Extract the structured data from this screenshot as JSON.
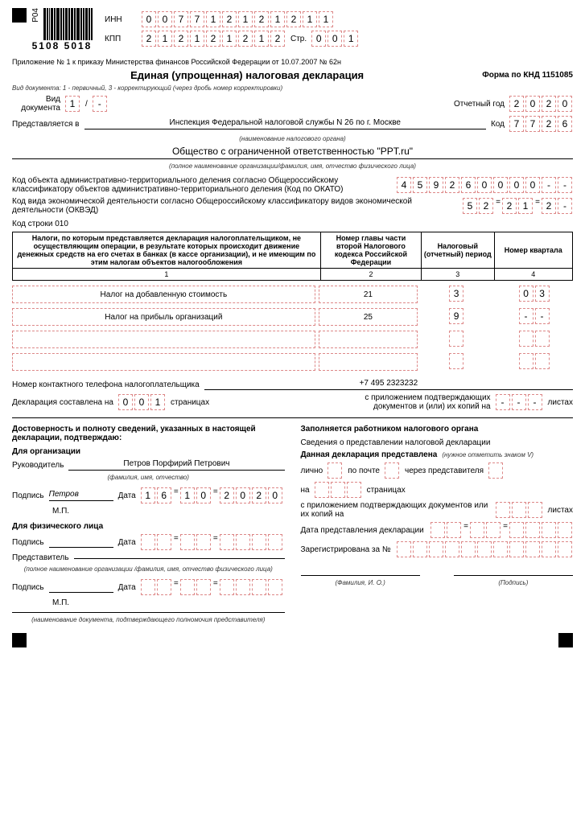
{
  "header": {
    "inn_label": "ИНН",
    "inn": [
      "0",
      "0",
      "7",
      "7",
      "1",
      "2",
      "1",
      "2",
      "1",
      "2",
      "1",
      "1"
    ],
    "kpp_label": "КПП",
    "kpp": [
      "2",
      "1",
      "2",
      "1",
      "2",
      "1",
      "2",
      "1",
      "2"
    ],
    "page_label": "Стр.",
    "page": [
      "0",
      "0",
      "1"
    ],
    "p04": "Р04",
    "barcode_num": "5108 5018"
  },
  "annex": "Приложение № 1 к приказу Министерства финансов Российской Федерации от 10.07.2007 № 62н",
  "title": "Единая (упрощенная) налоговая декларация",
  "form_code": "Форма по КНД 1151085",
  "doc_type_hint": "Вид документа: 1 - первичный, 3 - корректирующий (через дробь номер корректировки)",
  "doc_type_label": "Вид документа",
  "doc_type": [
    "1"
  ],
  "doc_slash": "/",
  "doc_corr": [
    "-"
  ],
  "report_year_label": "Отчетный год",
  "report_year": [
    "2",
    "0",
    "2",
    "0"
  ],
  "submitted_label": "Представляется в",
  "submitted_to": "Инспекция Федеральной налоговой службы N 26 по г. Москве",
  "submitted_hint": "(наименование налогового органа)",
  "code_label": "Код",
  "code": [
    "7",
    "7",
    "2",
    "6"
  ],
  "org_name": "Общество с ограниченной ответственностью \"PPT.ru\"",
  "org_hint": "(полное наименование организации/фамилия, имя, отчество физического лица)",
  "okato_label": "Код объекта административно-территориального деления согласно Общероссийскому классификатору объектов административно-территориального деления (Код по ОКАТО)",
  "okato": [
    "4",
    "5",
    "9",
    "2",
    "6",
    "0",
    "0",
    "0",
    "0",
    "-",
    "-"
  ],
  "okved_label": "Код вида экономической деятельности согласно Общероссийскому классификатору видов экономической деятельности (ОКВЭД)",
  "okved1": [
    "5",
    "2"
  ],
  "okved2": [
    "2",
    "1"
  ],
  "okved3": [
    "2",
    "-"
  ],
  "line010": "Код строки 010",
  "table": {
    "h1": "Налоги, по которым представляется декларация налогоплательщиком, не осуществляющим операции, в результате которых происходит движение денежных средств на его счетах в банках (в кассе организации), и не имеющим по этим налогам объектов налогообложения",
    "h2": "Номер главы части второй Налогового кодекса Российской Федерации",
    "h3": "Налоговый (отчетный) период",
    "h4": "Номер квартала",
    "c1": "1",
    "c2": "2",
    "c3": "3",
    "c4": "4",
    "rows": [
      {
        "name": "Налог на добавленную стоимость",
        "chapter": "21",
        "period": [
          "3"
        ],
        "quarter": [
          "0",
          "3"
        ]
      },
      {
        "name": "Налог на прибыль организаций",
        "chapter": "25",
        "period": [
          "9"
        ],
        "quarter": [
          "-",
          "-"
        ]
      },
      {
        "name": "",
        "chapter": "",
        "period": [
          "",
          ""
        ],
        "quarter": [
          "",
          ""
        ]
      },
      {
        "name": "",
        "chapter": "",
        "period": [
          "",
          ""
        ],
        "quarter": [
          "",
          ""
        ]
      }
    ]
  },
  "phone_label": "Номер контактного телефона налогоплательщика",
  "phone": "+7 495 2323232",
  "decl_pages_label1": "Декларация составлена на",
  "decl_pages": [
    "0",
    "0",
    "1"
  ],
  "decl_pages_label2": "страницах",
  "attach_label1": "с приложением подтверждающих документов и (или) их копий на",
  "attach_pages": [
    "-",
    "-",
    "-"
  ],
  "attach_label2": "листах",
  "left": {
    "confirm_title": "Достоверность и полноту сведений, указанных в настоящей декларации, подтверждаю:",
    "for_org": "Для организации",
    "head_label": "Руководитель",
    "head_name": "Петров Порфирий Петрович",
    "fio_hint": "(фамилия, имя, отчество)",
    "sign_label": "Подпись",
    "sign": "Петров",
    "date_label": "Дата",
    "date_d": [
      "1",
      "6"
    ],
    "date_m": [
      "1",
      "0"
    ],
    "date_y": [
      "2",
      "0",
      "2",
      "0"
    ],
    "mp": "М.П.",
    "for_phys": "Для физического лица",
    "rep_label": "Представитель",
    "rep_hint": "(полное наименование организации /фамилия, имя, отчество физического лица)",
    "doc_hint": "(наименование документа, подтверждающего полномочия представителя)"
  },
  "right": {
    "title": "Заполняется работником налогового органа",
    "info": "Сведения о представлении налоговой декларации",
    "presented": "Данная декларация представлена",
    "presented_hint": "(нужное отметить знаком V)",
    "in_person": "лично",
    "by_mail": "по почте",
    "via_rep": "через представителя",
    "on_pages": "на",
    "pages_word": "страницах",
    "with_attach": "с приложением подтверждающих документов или их копий на",
    "sheets": "листах",
    "date_present": "Дата представления декларации",
    "registered": "Зарегистрирована за №",
    "fio": "(Фамилия, И. О.)",
    "sign": "(Подпись)"
  }
}
